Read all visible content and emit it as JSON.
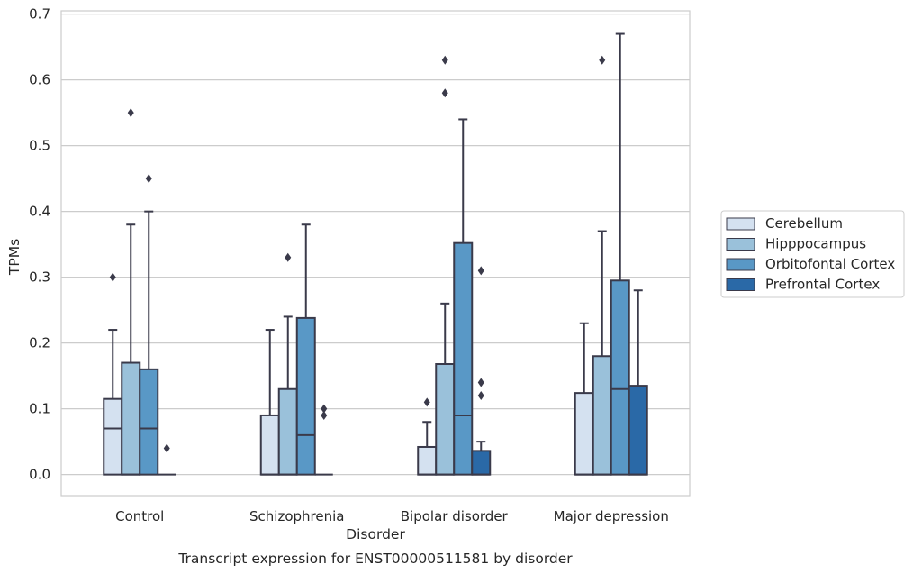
{
  "chart_data": {
    "type": "boxplot",
    "title": "Transcript expression for ENST00000511581 by disorder",
    "xlabel": "Disorder",
    "ylabel": "TPMs",
    "ylim": [
      -0.032,
      0.705
    ],
    "yticks": [
      0.0,
      0.1,
      0.2,
      0.3,
      0.4,
      0.5,
      0.6,
      0.7
    ],
    "ytick_labels": [
      "0.0",
      "0.1",
      "0.2",
      "0.3",
      "0.4",
      "0.5",
      "0.6",
      "0.7"
    ],
    "grid": "horizontal",
    "legend_position": "right",
    "categories": [
      "Control",
      "Schizophrenia",
      "Bipolar disorder",
      "Major depression"
    ],
    "series": [
      {
        "name": "Cerebellum",
        "color": "#d4e1f0",
        "boxes": [
          {
            "q1": 0.0,
            "median": 0.07,
            "q3": 0.115,
            "whisker_low": 0.0,
            "whisker_high": 0.22,
            "outliers": [
              0.3
            ]
          },
          {
            "q1": 0.0,
            "median": 0.0,
            "q3": 0.09,
            "whisker_low": 0.0,
            "whisker_high": 0.22,
            "outliers": []
          },
          {
            "q1": 0.0,
            "median": 0.0,
            "q3": 0.042,
            "whisker_low": 0.0,
            "whisker_high": 0.08,
            "outliers": [
              0.11
            ]
          },
          {
            "q1": 0.0,
            "median": 0.0,
            "q3": 0.124,
            "whisker_low": 0.0,
            "whisker_high": 0.23,
            "outliers": []
          }
        ]
      },
      {
        "name": "Hipppocampus",
        "color": "#9ac1da",
        "boxes": [
          {
            "q1": 0.0,
            "median": 0.0,
            "q3": 0.17,
            "whisker_low": 0.0,
            "whisker_high": 0.38,
            "outliers": [
              0.55
            ]
          },
          {
            "q1": 0.0,
            "median": 0.0,
            "q3": 0.13,
            "whisker_low": 0.0,
            "whisker_high": 0.24,
            "outliers": [
              0.33
            ]
          },
          {
            "q1": 0.0,
            "median": 0.0,
            "q3": 0.168,
            "whisker_low": 0.0,
            "whisker_high": 0.26,
            "outliers": [
              0.58,
              0.63
            ]
          },
          {
            "q1": 0.0,
            "median": 0.0,
            "q3": 0.18,
            "whisker_low": 0.0,
            "whisker_high": 0.37,
            "outliers": [
              0.63
            ]
          }
        ]
      },
      {
        "name": "Orbitofontal Cortex",
        "color": "#5998c6",
        "boxes": [
          {
            "q1": 0.0,
            "median": 0.07,
            "q3": 0.16,
            "whisker_low": 0.0,
            "whisker_high": 0.4,
            "outliers": [
              0.45
            ]
          },
          {
            "q1": 0.0,
            "median": 0.06,
            "q3": 0.238,
            "whisker_low": 0.0,
            "whisker_high": 0.38,
            "outliers": []
          },
          {
            "q1": 0.0,
            "median": 0.09,
            "q3": 0.352,
            "whisker_low": 0.0,
            "whisker_high": 0.54,
            "outliers": []
          },
          {
            "q1": 0.0,
            "median": 0.13,
            "q3": 0.295,
            "whisker_low": 0.0,
            "whisker_high": 0.67,
            "outliers": []
          }
        ]
      },
      {
        "name": "Prefrontal Cortex",
        "color": "#2a69a7",
        "boxes": [
          {
            "q1": 0.0,
            "median": 0.0,
            "q3": 0.0,
            "whisker_low": 0.0,
            "whisker_high": 0.0,
            "outliers": [
              0.04
            ]
          },
          {
            "q1": 0.0,
            "median": 0.0,
            "q3": 0.0,
            "whisker_low": 0.0,
            "whisker_high": 0.0,
            "outliers": [
              0.09,
              0.1
            ]
          },
          {
            "q1": 0.0,
            "median": 0.0,
            "q3": 0.036,
            "whisker_low": 0.0,
            "whisker_high": 0.05,
            "outliers": [
              0.12,
              0.14,
              0.31
            ]
          },
          {
            "q1": 0.0,
            "median": 0.0,
            "q3": 0.135,
            "whisker_low": 0.0,
            "whisker_high": 0.28,
            "outliers": []
          }
        ]
      }
    ]
  }
}
